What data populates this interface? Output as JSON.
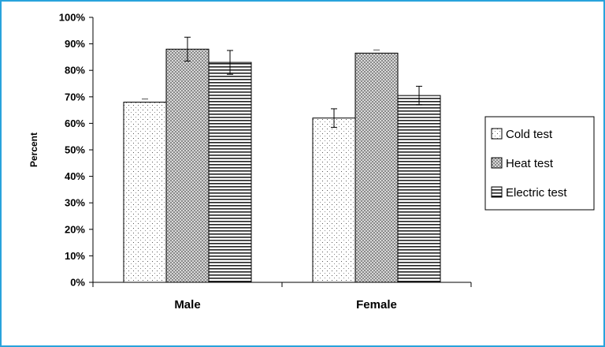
{
  "chart_data": {
    "type": "bar",
    "title": "",
    "xlabel": "",
    "ylabel": "Percent",
    "ylim": [
      0,
      100
    ],
    "y_ticks": [
      "0%",
      "10%",
      "20%",
      "30%",
      "40%",
      "50%",
      "60%",
      "70%",
      "80%",
      "90%",
      "100%"
    ],
    "categories": [
      "Male",
      "Female"
    ],
    "series": [
      {
        "name": "Cold test",
        "values": [
          68,
          62
        ],
        "errors": [
          0,
          3.5
        ],
        "pattern": "dots"
      },
      {
        "name": "Heat test",
        "values": [
          88,
          86.5
        ],
        "errors": [
          4.5,
          0
        ],
        "pattern": "checker"
      },
      {
        "name": "Electric test",
        "values": [
          83,
          70.5
        ],
        "errors": [
          4.5,
          3.5
        ],
        "pattern": "hlines"
      }
    ],
    "legend": "right",
    "grid": false
  }
}
